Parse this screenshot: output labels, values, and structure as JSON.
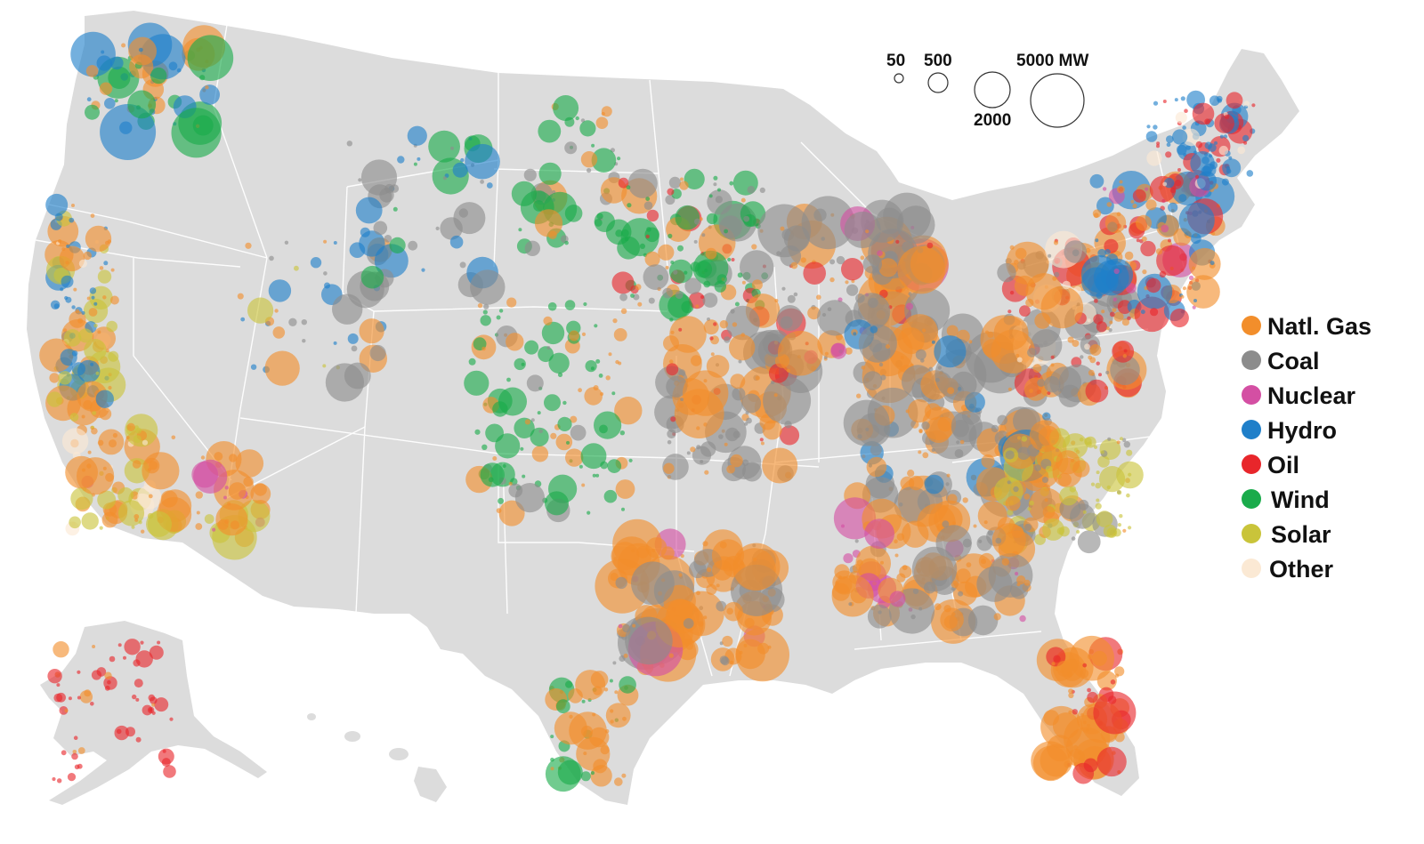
{
  "map": {
    "land_color": "#dcdcdc",
    "border_color": "#ffffff"
  },
  "size_legend": {
    "labels": [
      "50",
      "500",
      "2000",
      "5000 MW"
    ],
    "capacities_mw": [
      50,
      500,
      2000,
      5000
    ]
  },
  "fuel_legend": {
    "items": [
      {
        "key": "gas",
        "label": "Natl. Gas",
        "color": "#f28e2b"
      },
      {
        "key": "coal",
        "label": "Coal",
        "color": "#8c8c8c"
      },
      {
        "key": "nuclear",
        "label": "Nuclear",
        "color": "#d44fa3"
      },
      {
        "key": "hydro",
        "label": "Hydro",
        "color": "#1f7fc9"
      },
      {
        "key": "oil",
        "label": "Oil",
        "color": "#e8262b"
      },
      {
        "key": "wind",
        "label": "Wind",
        "color": "#1aab4b"
      },
      {
        "key": "solar",
        "label": "Solar",
        "color": "#c9c43a"
      },
      {
        "key": "other",
        "label": "Other",
        "color": "#fbe9d4"
      }
    ]
  }
}
